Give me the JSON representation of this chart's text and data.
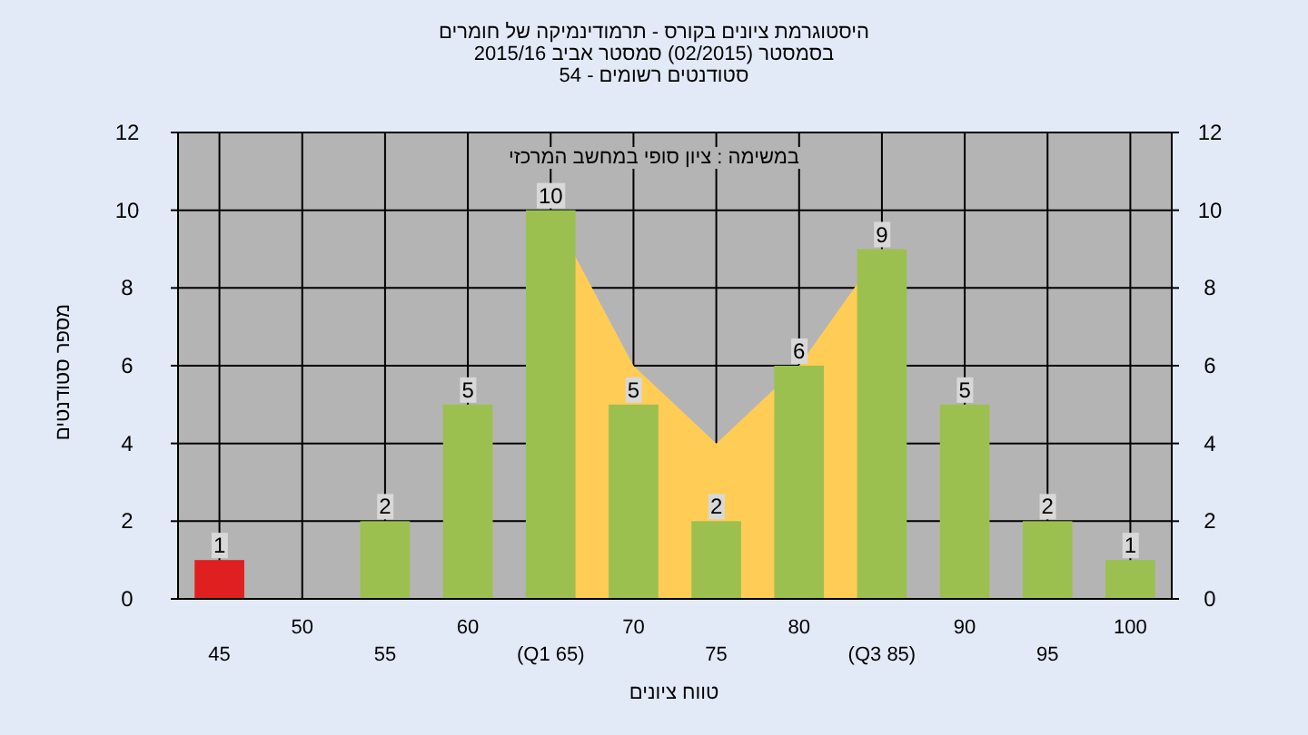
{
  "chart_data": {
    "type": "bar",
    "title": "היסטוגרמת ציונים בקורס - תרמודינמיקה של חומרים",
    "subtitle": "בסמסטר  (02/2015)  סמסטר אביב 2015/16",
    "annotations": [
      "סטודנטים רשומים - 54",
      "במשימה : ציון סופי במחשב המרכזי"
    ],
    "xlabel": "טווח ציונים",
    "ylabel": "מספר סטודנטים",
    "categories": [
      "45",
      "50",
      "55",
      "60",
      "(Q1 65)",
      "70",
      "75",
      "80",
      "(Q3 85)",
      "90",
      "95",
      "100"
    ],
    "series": [
      {
        "type": "area",
        "color": "#ffcc55",
        "values": [
          null,
          null,
          null,
          null,
          10,
          6,
          4,
          6,
          9,
          null,
          null,
          null
        ]
      },
      {
        "values": [
          1,
          0,
          2,
          5,
          10,
          5,
          2,
          6,
          9,
          5,
          2,
          1
        ],
        "colors": [
          "#e02020",
          "#9cc050",
          "#9cc050",
          "#9cc050",
          "#9cc050",
          "#9cc050",
          "#9cc050",
          "#9cc050",
          "#9cc050",
          "#9cc050",
          "#9cc050",
          "#9cc050"
        ],
        "value_labels": [
          "1",
          null,
          "2",
          "5",
          "10",
          "5",
          "2",
          "6",
          "9",
          "5",
          "2",
          "1"
        ]
      }
    ],
    "ylim": [
      0,
      12
    ],
    "yticks": [
      0,
      2,
      4,
      6,
      8,
      10,
      12
    ],
    "y2lim": [
      0,
      12
    ],
    "y2ticks": [
      0,
      2,
      4,
      6,
      8,
      10,
      12
    ],
    "grid": true
  }
}
